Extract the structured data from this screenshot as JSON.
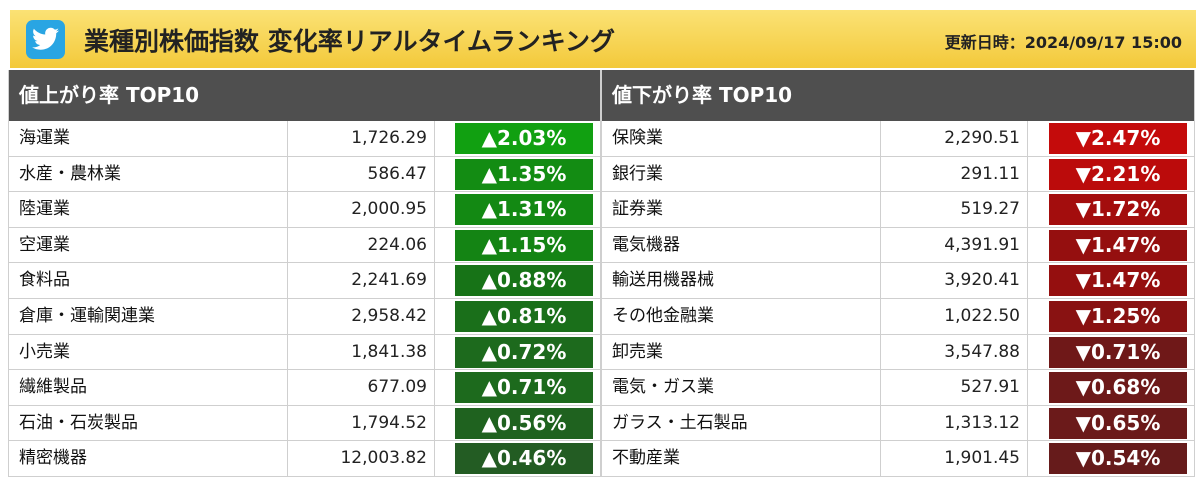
{
  "header": {
    "title": "業種別株価指数 変化率リアルタイムランキング",
    "updated": "更新日時：2024/09/17 15:00",
    "icon": "twitter-bird-icon"
  },
  "gainers": {
    "heading": "値上がり率 TOP10",
    "rows": [
      {
        "name": "海運業",
        "value": "1,726.29",
        "change": "▲2.03%",
        "color": "#11a011"
      },
      {
        "name": "水産・農林業",
        "value": "586.47",
        "change": "▲1.35%",
        "color": "#138c13"
      },
      {
        "name": "陸運業",
        "value": "2,000.95",
        "change": "▲1.31%",
        "color": "#138913"
      },
      {
        "name": "空運業",
        "value": "224.06",
        "change": "▲1.15%",
        "color": "#148414"
      },
      {
        "name": "食料品",
        "value": "2,241.69",
        "change": "▲0.88%",
        "color": "#177317"
      },
      {
        "name": "倉庫・運輸関連業",
        "value": "2,958.42",
        "change": "▲0.81%",
        "color": "#1a6f1a"
      },
      {
        "name": "小売業",
        "value": "1,841.38",
        "change": "▲0.72%",
        "color": "#1d6a1d"
      },
      {
        "name": "繊維製品",
        "value": "677.09",
        "change": "▲0.71%",
        "color": "#1d6a1d"
      },
      {
        "name": "石油・石炭製品",
        "value": "1,794.52",
        "change": "▲0.56%",
        "color": "#1f621f"
      },
      {
        "name": "精密機器",
        "value": "12,003.82",
        "change": "▲0.46%",
        "color": "#235c23"
      }
    ]
  },
  "losers": {
    "heading": "値下がり率 TOP10",
    "rows": [
      {
        "name": "保険業",
        "value": "2,290.51",
        "change": "▼2.47%",
        "color": "#c40b0b"
      },
      {
        "name": "銀行業",
        "value": "291.11",
        "change": "▼2.21%",
        "color": "#bb0b0b"
      },
      {
        "name": "証券業",
        "value": "519.27",
        "change": "▼1.72%",
        "color": "#a30d0d"
      },
      {
        "name": "電気機器",
        "value": "4,391.91",
        "change": "▼1.47%",
        "color": "#950f0f"
      },
      {
        "name": "輸送用機器械",
        "value": "3,920.41",
        "change": "▼1.47%",
        "color": "#950f0f"
      },
      {
        "name": "その他金融業",
        "value": "1,022.50",
        "change": "▼1.25%",
        "color": "#891212"
      },
      {
        "name": "卸売業",
        "value": "3,547.88",
        "change": "▼0.71%",
        "color": "#6f1818"
      },
      {
        "name": "電気・ガス業",
        "value": "527.91",
        "change": "▼0.68%",
        "color": "#6d1919"
      },
      {
        "name": "ガラス・土石製品",
        "value": "1,313.12",
        "change": "▼0.65%",
        "color": "#6b1a1a"
      },
      {
        "name": "不動産業",
        "value": "1,901.45",
        "change": "▼0.54%",
        "color": "#661b1b"
      }
    ]
  }
}
